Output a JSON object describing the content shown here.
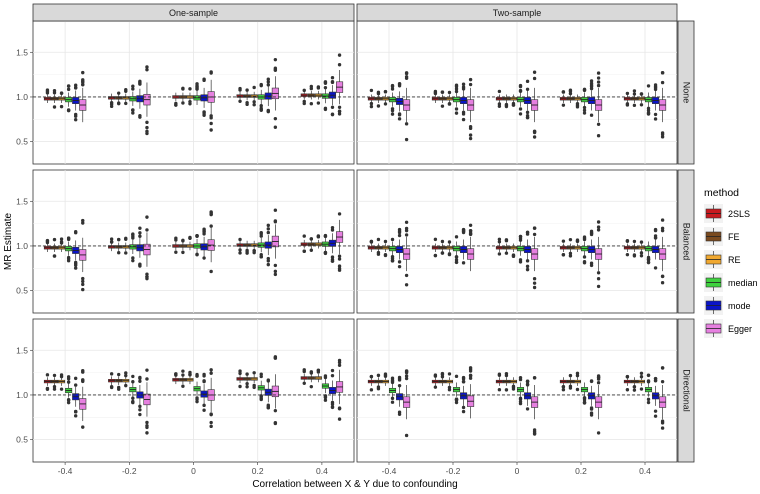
{
  "chart_data": {
    "type": "boxplot",
    "title": "",
    "xlabel": "Correlation between X & Y  due to confounding",
    "ylabel": "MR Estimate",
    "x_categories": [
      "-0.4",
      "-0.2",
      "0",
      "0.2",
      "0.4"
    ],
    "y_ticks": [
      "0.5",
      "1.0",
      "1.5"
    ],
    "ylim": [
      0.25,
      1.85
    ],
    "reference_line": 1.0,
    "grid": true,
    "columns": [
      "One-sample",
      "Two-sample"
    ],
    "rows": [
      "None",
      "Balanced",
      "Directional"
    ],
    "legend": {
      "title": "method",
      "position": "right",
      "entries": [
        {
          "name": "2SLS",
          "color": "#c8191e"
        },
        {
          "name": "FE",
          "color": "#7a4a1e"
        },
        {
          "name": "RE",
          "color": "#f0a830"
        },
        {
          "name": "median",
          "color": "#3fd23f"
        },
        {
          "name": "mode",
          "color": "#0a14c8"
        },
        {
          "name": "Egger",
          "color": "#e680e0"
        }
      ]
    },
    "panels": [
      {
        "row": "None",
        "column": "One-sample",
        "median_estimates": [
          [
            0.98,
            0.98,
            0.98,
            0.97,
            0.96,
            0.91
          ],
          [
            0.99,
            0.99,
            0.99,
            0.98,
            0.98,
            0.97
          ],
          [
            1.0,
            1.0,
            1.0,
            0.99,
            0.99,
            1.0
          ],
          [
            1.01,
            1.01,
            1.01,
            1.0,
            1.01,
            1.04
          ],
          [
            1.02,
            1.02,
            1.02,
            1.01,
            1.02,
            1.11
          ]
        ]
      },
      {
        "row": "None",
        "column": "Two-sample",
        "median_estimates": [
          [
            0.98,
            0.98,
            0.98,
            0.97,
            0.95,
            0.91
          ],
          [
            0.98,
            0.98,
            0.98,
            0.97,
            0.96,
            0.91
          ],
          [
            0.98,
            0.98,
            0.98,
            0.97,
            0.96,
            0.91
          ],
          [
            0.98,
            0.98,
            0.98,
            0.97,
            0.96,
            0.91
          ],
          [
            0.98,
            0.98,
            0.98,
            0.97,
            0.96,
            0.91
          ]
        ]
      },
      {
        "row": "Balanced",
        "column": "One-sample",
        "median_estimates": [
          [
            0.98,
            0.98,
            0.98,
            0.97,
            0.95,
            0.9
          ],
          [
            0.99,
            0.99,
            0.99,
            0.99,
            0.98,
            0.96
          ],
          [
            1.0,
            1.0,
            1.0,
            1.0,
            0.99,
            1.01
          ],
          [
            1.01,
            1.01,
            1.01,
            1.01,
            1.01,
            1.05
          ],
          [
            1.02,
            1.02,
            1.02,
            1.02,
            1.03,
            1.1
          ]
        ]
      },
      {
        "row": "Balanced",
        "column": "Two-sample",
        "median_estimates": [
          [
            0.98,
            0.98,
            0.98,
            0.97,
            0.96,
            0.91
          ],
          [
            0.98,
            0.98,
            0.98,
            0.97,
            0.96,
            0.91
          ],
          [
            0.98,
            0.98,
            0.98,
            0.97,
            0.96,
            0.91
          ],
          [
            0.98,
            0.98,
            0.98,
            0.97,
            0.96,
            0.91
          ],
          [
            0.98,
            0.98,
            0.98,
            0.97,
            0.96,
            0.91
          ]
        ]
      },
      {
        "row": "Directional",
        "column": "One-sample",
        "median_estimates": [
          [
            1.15,
            1.15,
            1.15,
            1.05,
            0.98,
            0.9
          ],
          [
            1.16,
            1.16,
            1.16,
            1.06,
            1.0,
            0.95
          ],
          [
            1.17,
            1.17,
            1.17,
            1.07,
            1.01,
            1.0
          ],
          [
            1.18,
            1.18,
            1.18,
            1.08,
            1.03,
            1.04
          ],
          [
            1.19,
            1.19,
            1.19,
            1.1,
            1.05,
            1.09
          ]
        ]
      },
      {
        "row": "Directional",
        "column": "Two-sample",
        "median_estimates": [
          [
            1.15,
            1.15,
            1.15,
            1.05,
            0.98,
            0.92
          ],
          [
            1.15,
            1.15,
            1.15,
            1.06,
            0.99,
            0.93
          ],
          [
            1.15,
            1.15,
            1.15,
            1.06,
            0.99,
            0.92
          ],
          [
            1.15,
            1.15,
            1.15,
            1.06,
            0.99,
            0.92
          ],
          [
            1.15,
            1.15,
            1.15,
            1.06,
            0.99,
            0.92
          ]
        ]
      }
    ]
  }
}
